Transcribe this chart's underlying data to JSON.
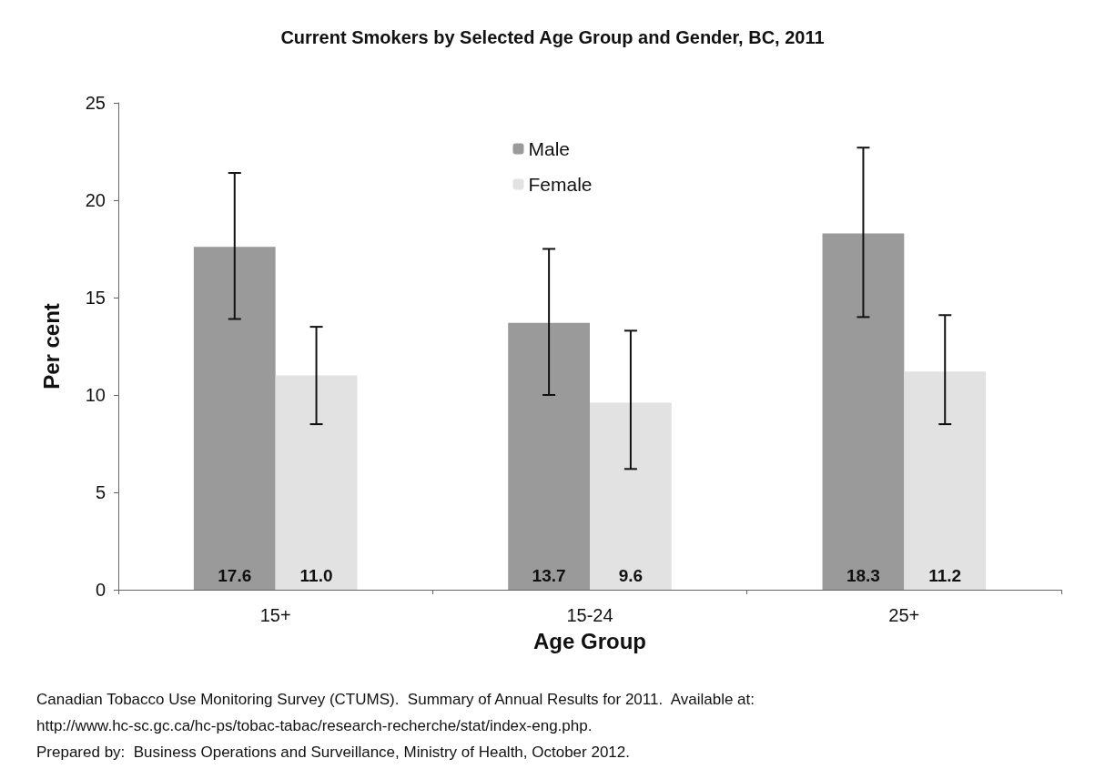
{
  "chart_data": {
    "type": "bar",
    "title": "Current Smokers by Selected Age Group and Gender, BC, 2011",
    "xlabel": "Age Group",
    "ylabel": "Per cent",
    "categories": [
      "15+",
      "15-24",
      "25+"
    ],
    "series": [
      {
        "name": "Male",
        "color": "#9a9a9a",
        "values": [
          17.6,
          13.7,
          18.3
        ],
        "errors": [
          [
            13.9,
            21.4
          ],
          [
            10.0,
            17.5
          ],
          [
            14.0,
            22.7
          ]
        ]
      },
      {
        "name": "Female",
        "color": "#e2e2e2",
        "values": [
          11.0,
          9.6,
          11.2
        ],
        "value_labels": [
          "11.0",
          "9.6",
          "11.2"
        ],
        "errors": [
          [
            8.5,
            13.5
          ],
          [
            6.2,
            13.3
          ],
          [
            8.5,
            14.1
          ]
        ]
      }
    ],
    "ylim": [
      0,
      25
    ],
    "yticks": [
      0,
      5,
      10,
      15,
      20,
      25
    ],
    "grid": false,
    "legend": "top",
    "data_labels": true,
    "annotations": [
      "Canadian Tobacco Use Monitoring Survey (CTUMS).  Summary of Annual Results for 2011.  Available at:",
      "http://www.hc-sc.gc.ca/hc-ps/tobac-tabac/research-recherche/stat/index-eng.php.",
      "Prepared by:  Business Operations and Surveillance, Ministry of Health, October 2012."
    ]
  }
}
